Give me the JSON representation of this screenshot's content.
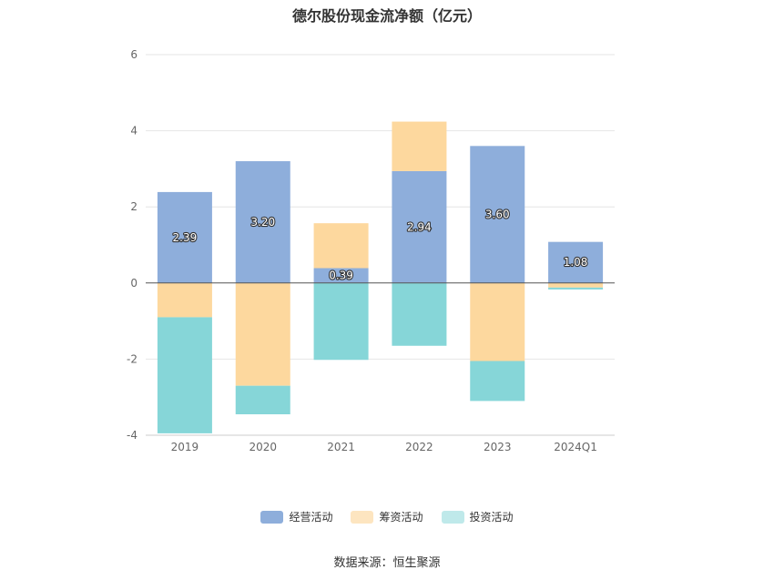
{
  "chart_data": {
    "type": "bar",
    "stacked": true,
    "title": "德尔股份现金流净额（亿元）",
    "categories": [
      "2019",
      "2020",
      "2021",
      "2022",
      "2023",
      "2024Q1"
    ],
    "ylim": [
      -4,
      6
    ],
    "yticks": [
      6,
      4,
      2,
      0,
      -2,
      -4
    ],
    "series": [
      {
        "name": "经营活动",
        "color": "#8eaedb",
        "values": [
          2.39,
          3.2,
          0.39,
          2.94,
          3.6,
          1.08
        ]
      },
      {
        "name": "筹资活动",
        "color": "#fdd89e",
        "values": [
          -0.9,
          -2.7,
          1.18,
          1.3,
          -2.05,
          -0.12
        ]
      },
      {
        "name": "投资活动",
        "color": "#86d6d8",
        "values": [
          -3.05,
          -0.75,
          -2.02,
          -1.65,
          -1.05,
          -0.05
        ]
      }
    ],
    "data_labels": [
      "2.39",
      "3.20",
      "0.39",
      "2.94",
      "3.60",
      "1.08"
    ],
    "grid": true,
    "legend_position": "bottom"
  },
  "legend": [
    {
      "label": "经营活动",
      "color": "#8eaedb"
    },
    {
      "label": "筹资活动",
      "color": "#fde5c0"
    },
    {
      "label": "投资活动",
      "color": "#bfe9ea"
    }
  ],
  "source_note": "数据来源：恒生聚源"
}
